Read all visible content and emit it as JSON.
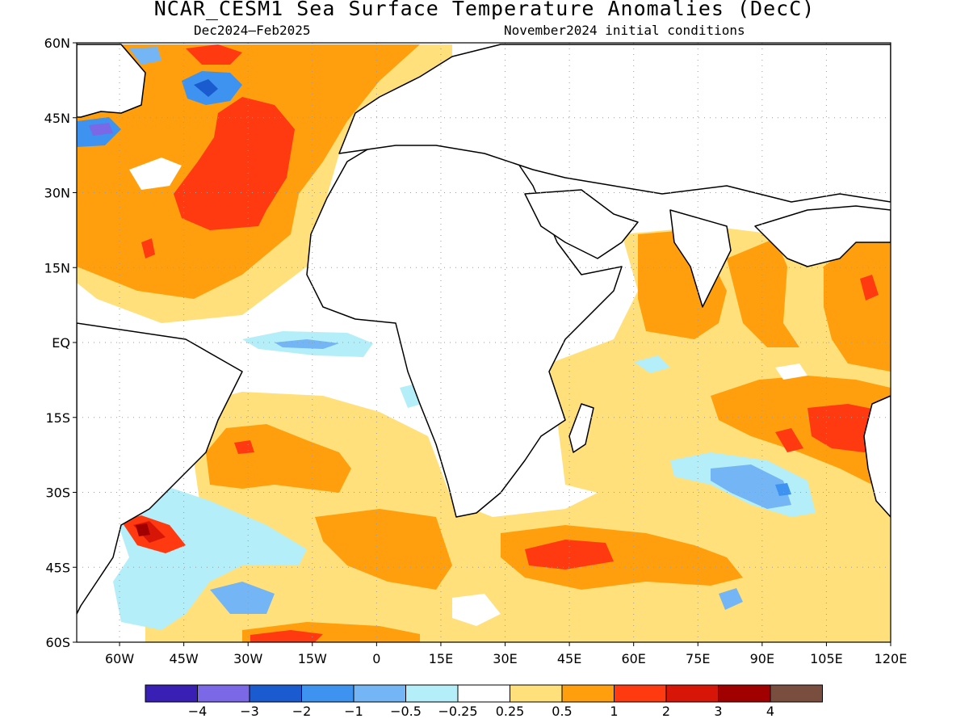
{
  "title": "NCAR_CESM1 Sea Surface Temperature Anomalies (DecC)",
  "subtitle_left": "Dec2024–Feb2025",
  "subtitle_right": "November2024 initial conditions",
  "map": {
    "lat_labels": [
      "60N",
      "45N",
      "30N",
      "15N",
      "EQ",
      "15S",
      "30S",
      "45S",
      "60S"
    ],
    "lon_labels": [
      "60W",
      "45W",
      "30W",
      "15W",
      "0",
      "15E",
      "30E",
      "45E",
      "60E",
      "75E",
      "90E",
      "105E",
      "120E"
    ],
    "lat_range": [
      -60,
      60
    ],
    "lon_range": [
      -70,
      120
    ],
    "grid": "dotted"
  },
  "colorbar": {
    "labels": [
      "−4",
      "−3",
      "−2",
      "−1",
      "−0.5",
      "−0.25",
      "0.25",
      "0.5",
      "1",
      "2",
      "3",
      "4"
    ],
    "colors": [
      "#3a1fb4",
      "#7a68e6",
      "#1a5bd0",
      "#3d93ef",
      "#74b5f5",
      "#b4eef8",
      "#ffffff",
      "#ffe07a",
      "#ff9f0e",
      "#ff3a10",
      "#d81608",
      "#a00000",
      "#7a4e3f"
    ]
  },
  "colors": {
    "land": "#ffffff",
    "coast": "#000000",
    "grid": "#9c9c9c"
  }
}
